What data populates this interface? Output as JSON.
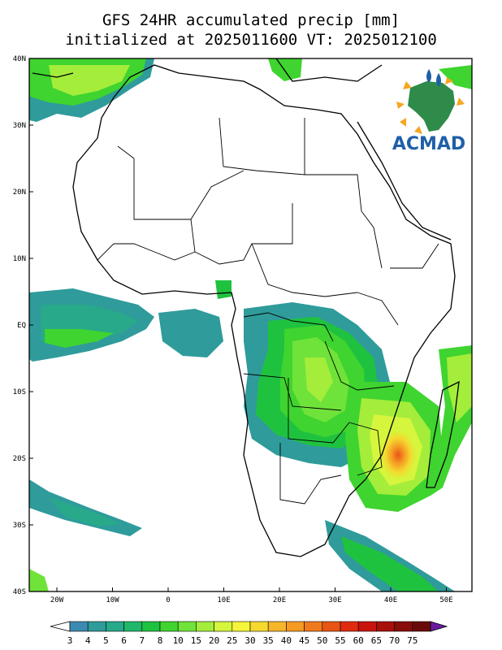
{
  "title": {
    "line1": "GFS 24HR accumulated precip [mm]",
    "line2": "initialized at 2025011600 VT: 2025012100"
  },
  "axes": {
    "lat_ticks": [
      "40N",
      "30N",
      "20N",
      "10N",
      "EQ",
      "10S",
      "20S",
      "30S",
      "40S"
    ],
    "lon_ticks": [
      "20W",
      "10W",
      "0",
      "10E",
      "20E",
      "30E",
      "40E",
      "50E"
    ]
  },
  "logo": {
    "text": "ACMAD",
    "icon": "acmad-africa-logo-icon"
  },
  "colorbar": {
    "labels": [
      "3",
      "4",
      "5",
      "6",
      "7",
      "8",
      "10",
      "15",
      "20",
      "25",
      "30",
      "35",
      "40",
      "45",
      "50",
      "55",
      "60",
      "65",
      "70",
      "75"
    ],
    "colors": [
      "#3b8bb0",
      "#2f9b9b",
      "#27a98a",
      "#1fb86b",
      "#1fc23f",
      "#3fd42f",
      "#6fe33a",
      "#a4ed3b",
      "#d6f53d",
      "#f5f53a",
      "#f5d92f",
      "#f5b62a",
      "#f59a23",
      "#ef7a1d",
      "#e85515",
      "#e02a0f",
      "#c8140d",
      "#a8100c",
      "#880c0a",
      "#6a0a08"
    ],
    "under_color": "#ffffff",
    "over_color": "#6a1aa0"
  }
}
